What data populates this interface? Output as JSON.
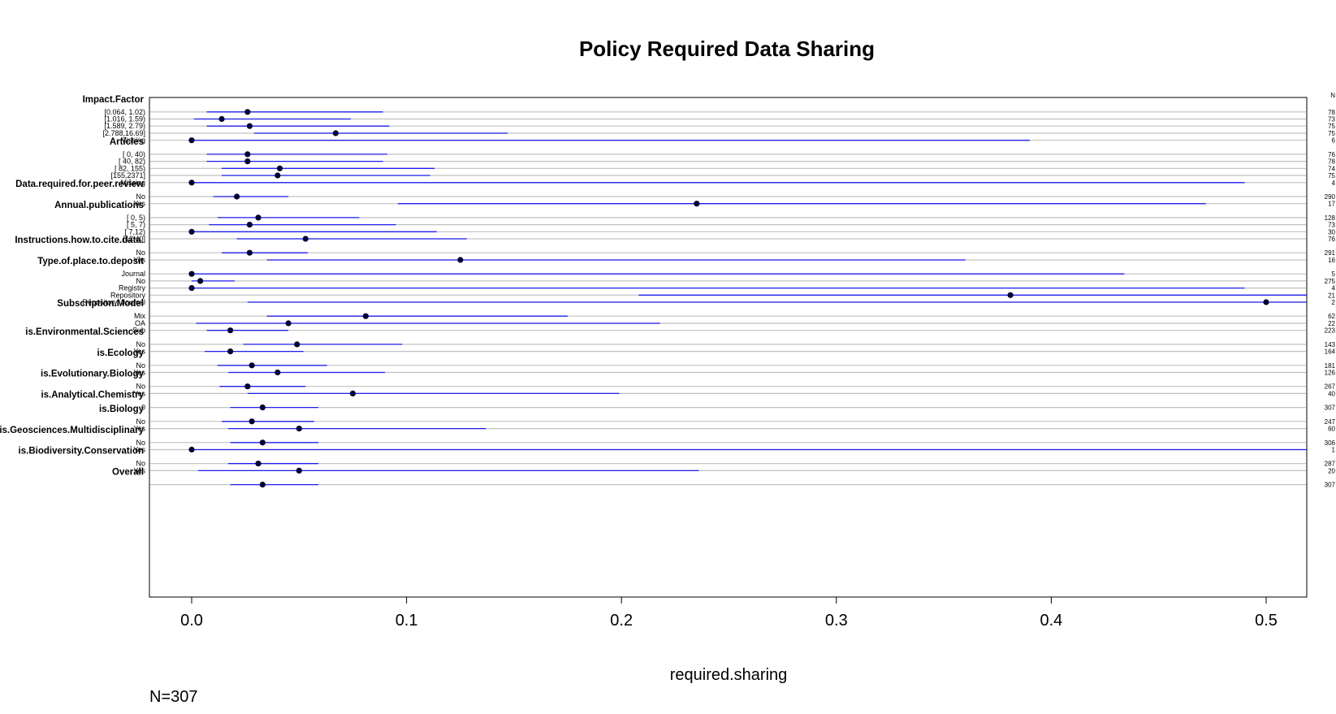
{
  "chart_data": {
    "type": "dotplot-ci",
    "title": "Policy Required Data Sharing",
    "xlabel": "required.sharing",
    "footnote": "N=307",
    "count_header": "N",
    "xlim": [
      -0.02,
      0.52
    ],
    "xticks": [
      "0.0",
      "0.1",
      "0.2",
      "0.3",
      "0.4",
      "0.5"
    ],
    "grid": "horizontal gray line per row",
    "colors": {
      "interval": "#2020ee",
      "point": "#000033",
      "gridline": "#c0c0c0"
    },
    "groups": [
      {
        "name": "Impact.Factor",
        "rows": [
          {
            "label": "[0.064, 1.02)",
            "est": 0.026,
            "lo": 0.007,
            "hi": 0.089,
            "n": "78"
          },
          {
            "label": "[1.016, 1.59)",
            "est": 0.014,
            "lo": 0.001,
            "hi": 0.074,
            "n": "73"
          },
          {
            "label": "[1.589, 2.79)",
            "est": 0.027,
            "lo": 0.007,
            "hi": 0.092,
            "n": "75"
          },
          {
            "label": "[2.788,16.69]",
            "est": 0.067,
            "lo": 0.029,
            "hi": 0.147,
            "n": "75"
          },
          {
            "label": "Missing",
            "est": 0.0,
            "lo": 0.0,
            "hi": 0.39,
            "n": "6"
          }
        ]
      },
      {
        "name": "Articles",
        "rows": [
          {
            "label": "[ 0,  40)",
            "est": 0.026,
            "lo": 0.007,
            "hi": 0.091,
            "n": "76"
          },
          {
            "label": "[ 40,  82)",
            "est": 0.026,
            "lo": 0.007,
            "hi": 0.089,
            "n": "78"
          },
          {
            "label": "[ 82, 155)",
            "est": 0.041,
            "lo": 0.014,
            "hi": 0.113,
            "n": "74"
          },
          {
            "label": "[155,2371]",
            "est": 0.04,
            "lo": 0.014,
            "hi": 0.111,
            "n": "75"
          },
          {
            "label": "Missing",
            "est": 0.0,
            "lo": 0.0,
            "hi": 0.49,
            "n": "4"
          }
        ]
      },
      {
        "name": "Data.required.for.peer.review",
        "rows": [
          {
            "label": "No",
            "est": 0.021,
            "lo": 0.01,
            "hi": 0.045,
            "n": "290"
          },
          {
            "label": "Yes",
            "est": 0.235,
            "lo": 0.096,
            "hi": 0.472,
            "n": "17"
          }
        ]
      },
      {
        "name": "Annual.publications",
        "rows": [
          {
            "label": "[ 0, 5)",
            "est": 0.031,
            "lo": 0.012,
            "hi": 0.078,
            "n": "128"
          },
          {
            "label": "[ 5, 7)",
            "est": 0.027,
            "lo": 0.008,
            "hi": 0.095,
            "n": "73"
          },
          {
            "label": "[ 7,12)",
            "est": 0.0,
            "lo": 0.0,
            "hi": 0.114,
            "n": "30"
          },
          {
            "label": "[12,40]",
            "est": 0.053,
            "lo": 0.021,
            "hi": 0.128,
            "n": "76"
          }
        ]
      },
      {
        "name": "Instructions.how.to.cite.data.",
        "rows": [
          {
            "label": "No",
            "est": 0.027,
            "lo": 0.014,
            "hi": 0.054,
            "n": "291"
          },
          {
            "label": "Yes",
            "est": 0.125,
            "lo": 0.035,
            "hi": 0.36,
            "n": "16"
          }
        ]
      },
      {
        "name": "Type.of.place.to.deposit",
        "rows": [
          {
            "label": "Journal",
            "est": 0.0,
            "lo": 0.0,
            "hi": 0.434,
            "n": "5"
          },
          {
            "label": "No",
            "est": 0.004,
            "lo": 0.0,
            "hi": 0.02,
            "n": "275"
          },
          {
            "label": "Registry",
            "est": 0.0,
            "lo": 0.0,
            "hi": 0.49,
            "n": "4"
          },
          {
            "label": "Repository",
            "est": 0.381,
            "lo": 0.208,
            "hi": 0.52,
            "n": "21"
          },
          {
            "label": "Repository; Journal",
            "est": 0.5,
            "lo": 0.026,
            "hi": 0.52,
            "n": "2"
          }
        ]
      },
      {
        "name": "Subscription.Model",
        "rows": [
          {
            "label": "Mix",
            "est": 0.081,
            "lo": 0.035,
            "hi": 0.175,
            "n": "62"
          },
          {
            "label": "OA",
            "est": 0.045,
            "lo": 0.002,
            "hi": 0.218,
            "n": "22"
          },
          {
            "label": "Sub",
            "est": 0.018,
            "lo": 0.007,
            "hi": 0.045,
            "n": "223"
          }
        ]
      },
      {
        "name": "is.Environmental.Sciences",
        "rows": [
          {
            "label": "No",
            "est": 0.049,
            "lo": 0.024,
            "hi": 0.098,
            "n": "143"
          },
          {
            "label": "Yes",
            "est": 0.018,
            "lo": 0.006,
            "hi": 0.052,
            "n": "164"
          }
        ]
      },
      {
        "name": "is.Ecology",
        "rows": [
          {
            "label": "No",
            "est": 0.028,
            "lo": 0.012,
            "hi": 0.063,
            "n": "181"
          },
          {
            "label": "Yes",
            "est": 0.04,
            "lo": 0.017,
            "hi": 0.09,
            "n": "126"
          }
        ]
      },
      {
        "name": "is.Evolutionary.Biology",
        "rows": [
          {
            "label": "No",
            "est": 0.026,
            "lo": 0.013,
            "hi": 0.053,
            "n": "267"
          },
          {
            "label": "Yes",
            "est": 0.075,
            "lo": 0.026,
            "hi": 0.199,
            "n": "40"
          }
        ]
      },
      {
        "name": "is.Analytical.Chemistry",
        "rows": [
          {
            "label": "0",
            "est": 0.033,
            "lo": 0.018,
            "hi": 0.059,
            "n": "307"
          }
        ]
      },
      {
        "name": "is.Biology",
        "rows": [
          {
            "label": "No",
            "est": 0.028,
            "lo": 0.014,
            "hi": 0.057,
            "n": "247"
          },
          {
            "label": "Yes",
            "est": 0.05,
            "lo": 0.017,
            "hi": 0.137,
            "n": "60"
          }
        ]
      },
      {
        "name": "is.Geosciences.Multidisciplinary",
        "rows": [
          {
            "label": "No",
            "est": 0.033,
            "lo": 0.018,
            "hi": 0.059,
            "n": "306"
          },
          {
            "label": "Yes",
            "est": 0.0,
            "lo": 0.0,
            "hi": 0.52,
            "n": "1"
          }
        ]
      },
      {
        "name": "is.Biodiversity.Conservation",
        "rows": [
          {
            "label": "No",
            "est": 0.031,
            "lo": 0.017,
            "hi": 0.059,
            "n": "287"
          },
          {
            "label": "Yes",
            "est": 0.05,
            "lo": 0.003,
            "hi": 0.236,
            "n": "20"
          }
        ]
      },
      {
        "name": "Overall",
        "rows": [
          {
            "label": "",
            "est": 0.033,
            "lo": 0.018,
            "hi": 0.059,
            "n": "307"
          }
        ]
      }
    ]
  }
}
